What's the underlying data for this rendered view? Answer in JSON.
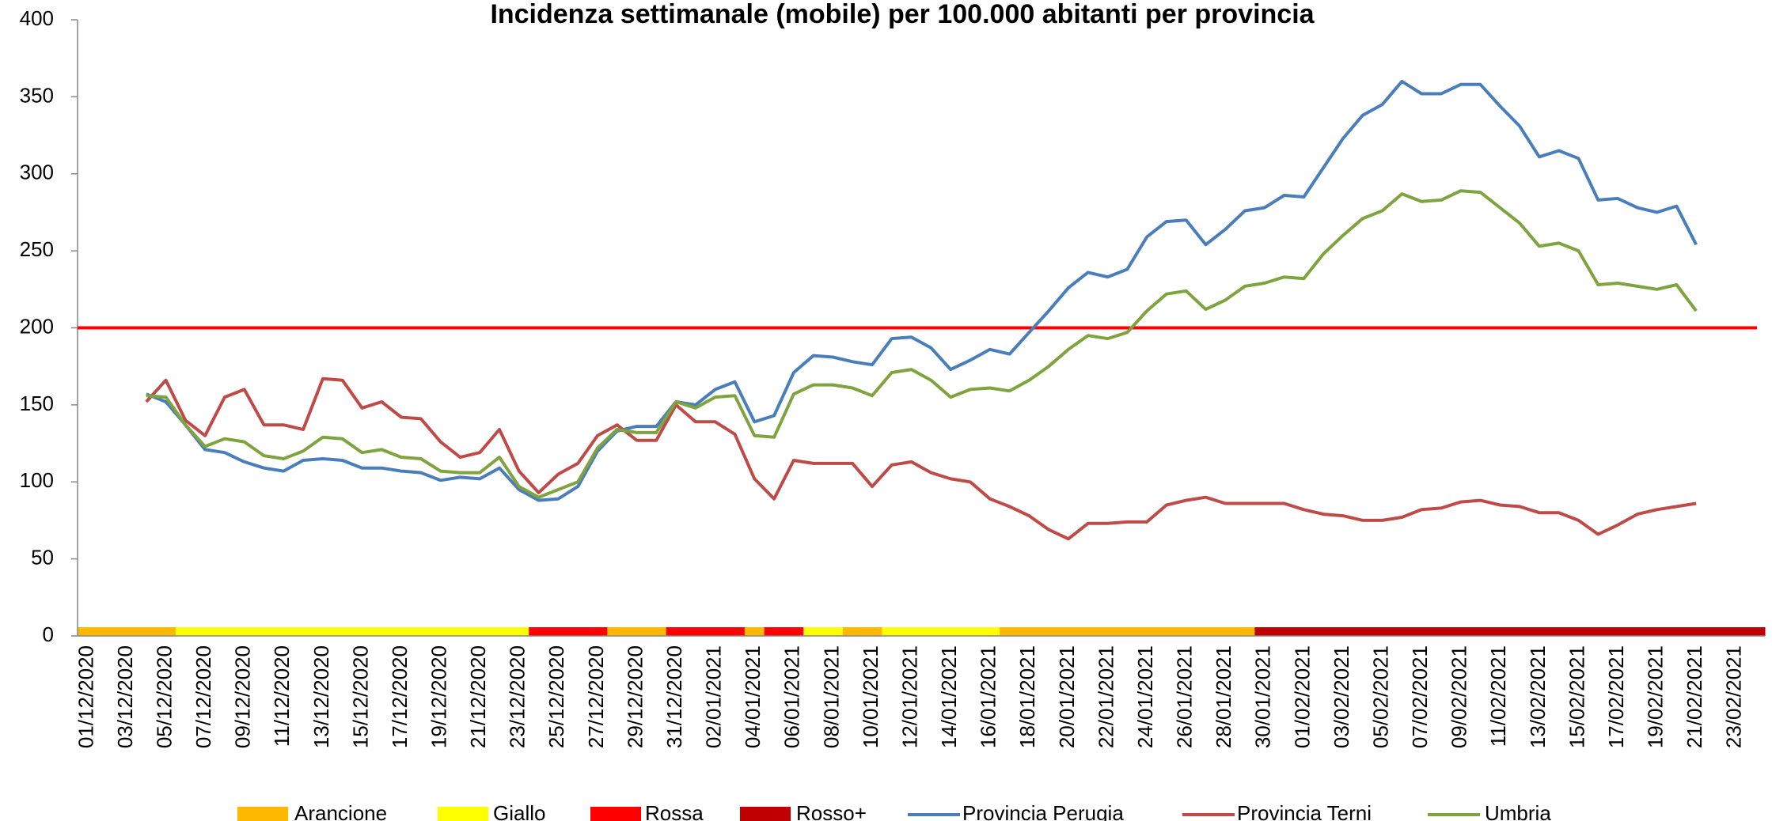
{
  "chart_data": {
    "type": "line",
    "title": "Incidenza settimanale (mobile) per 100.000 abitanti per provincia",
    "categories": [
      "01/12/2020",
      null,
      "03/12/2020",
      null,
      "05/12/2020",
      null,
      "07/12/2020",
      null,
      "09/12/2020",
      null,
      "11/12/2020",
      null,
      "13/12/2020",
      null,
      "15/12/2020",
      null,
      "17/12/2020",
      null,
      "19/12/2020",
      null,
      "21/12/2020",
      null,
      "23/12/2020",
      null,
      "25/12/2020",
      null,
      "27/12/2020",
      null,
      "29/12/2020",
      null,
      "31/12/2020",
      null,
      "02/01/2021",
      null,
      "04/01/2021",
      null,
      "06/01/2021",
      null,
      "08/01/2021",
      null,
      "10/01/2021",
      null,
      "12/01/2021",
      null,
      "14/01/2021",
      null,
      "16/01/2021",
      null,
      "18/01/2021",
      null,
      "20/01/2021",
      null,
      "22/01/2021",
      null,
      "24/01/2021",
      null,
      "26/01/2021",
      null,
      "28/01/2021",
      null,
      "30/01/2021",
      null,
      "01/02/2021",
      null,
      "03/02/2021",
      null,
      "05/02/2021",
      null,
      "07/02/2021",
      null,
      "09/02/2021",
      null,
      "11/02/2021",
      null,
      "13/02/2021",
      null,
      "15/02/2021",
      null,
      "17/02/2021",
      null,
      "19/02/2021",
      null,
      "21/02/2021",
      null,
      "23/02/2021",
      null
    ],
    "zones": [
      {
        "name": "Arancione",
        "color": "#ffb800"
      },
      {
        "name": "Giallo",
        "color": "#ffff00"
      },
      {
        "name": "Rossa",
        "color": "#ff0000"
      },
      {
        "name": "Rosso+",
        "color": "#c00000"
      }
    ],
    "zone_by_day": [
      "Arancione",
      "Arancione",
      "Arancione",
      "Arancione",
      "Arancione",
      "Giallo",
      "Giallo",
      "Giallo",
      "Giallo",
      "Giallo",
      "Giallo",
      "Giallo",
      "Giallo",
      "Giallo",
      "Giallo",
      "Giallo",
      "Giallo",
      "Giallo",
      "Giallo",
      "Giallo",
      "Giallo",
      "Giallo",
      "Giallo",
      "Rossa",
      "Rossa",
      "Rossa",
      "Rossa",
      "Arancione",
      "Arancione",
      "Arancione",
      "Rossa",
      "Rossa",
      "Rossa",
      "Rossa",
      "Arancione",
      "Rossa",
      "Rossa",
      "Giallo",
      "Giallo",
      "Arancione",
      "Arancione",
      "Giallo",
      "Giallo",
      "Giallo",
      "Giallo",
      "Giallo",
      "Giallo",
      "Arancione",
      "Arancione",
      "Arancione",
      "Arancione",
      "Arancione",
      "Arancione",
      "Arancione",
      "Arancione",
      "Arancione",
      "Arancione",
      "Arancione",
      "Arancione",
      "Arancione",
      "Rosso+",
      "Rosso+",
      "Rosso+",
      "Rosso+",
      "Rosso+",
      "Rosso+",
      "Rosso+",
      "Rosso+",
      "Rosso+",
      "Rosso+",
      "Rosso+",
      "Rosso+",
      "Rosso+",
      "Rosso+",
      "Rosso+",
      "Rosso+",
      "Rosso+",
      "Rosso+",
      "Rosso+",
      "Rosso+",
      "Rosso+",
      "Rosso+",
      "Rosso+",
      "Rosso+",
      "Rosso+",
      "Rosso+"
    ],
    "series": [
      {
        "name": "Provincia Perugia",
        "color": "#4a7ebb",
        "values": [
          null,
          null,
          null,
          157,
          152,
          137,
          121,
          119,
          113,
          109,
          107,
          114,
          115,
          114,
          109,
          109,
          107,
          106,
          101,
          103,
          102,
          109,
          95,
          88,
          89,
          97,
          120,
          133,
          136,
          136,
          152,
          150,
          160,
          165,
          139,
          143,
          171,
          182,
          181,
          178,
          176,
          193,
          194,
          187,
          173,
          179,
          186,
          183,
          197,
          211,
          226,
          236,
          233,
          238,
          259,
          269,
          270,
          254,
          264,
          276,
          278,
          286,
          285,
          304,
          323,
          338,
          345,
          360,
          352,
          352,
          358,
          358,
          344,
          331,
          311,
          315,
          310,
          283,
          284,
          278,
          275,
          279,
          254,
          null,
          null,
          null
        ]
      },
      {
        "name": "Provincia Terni",
        "color": "#be4b48",
        "values": [
          null,
          null,
          null,
          152,
          166,
          140,
          130,
          155,
          160,
          137,
          137,
          134,
          167,
          166,
          148,
          152,
          142,
          141,
          126,
          116,
          119,
          134,
          107,
          93,
          105,
          112,
          130,
          137,
          127,
          127,
          150,
          139,
          139,
          131,
          102,
          89,
          114,
          112,
          112,
          112,
          97,
          111,
          113,
          106,
          102,
          100,
          89,
          84,
          78,
          69,
          63,
          73,
          73,
          74,
          74,
          85,
          88,
          90,
          86,
          86,
          86,
          86,
          82,
          79,
          78,
          75,
          75,
          77,
          82,
          83,
          87,
          88,
          85,
          84,
          80,
          80,
          75,
          66,
          72,
          79,
          82,
          84,
          86,
          null,
          null,
          null
        ]
      },
      {
        "name": "Umbria",
        "color": "#7fa33e",
        "values": [
          null,
          null,
          null,
          156,
          155,
          137,
          123,
          128,
          126,
          117,
          115,
          120,
          129,
          128,
          119,
          121,
          116,
          115,
          107,
          106,
          106,
          116,
          97,
          90,
          95,
          100,
          122,
          134,
          132,
          132,
          152,
          148,
          155,
          156,
          130,
          129,
          157,
          163,
          163,
          161,
          156,
          171,
          173,
          166,
          155,
          160,
          161,
          159,
          166,
          175,
          186,
          195,
          193,
          197,
          211,
          222,
          224,
          212,
          218,
          227,
          229,
          233,
          232,
          248,
          260,
          271,
          276,
          287,
          282,
          283,
          289,
          288,
          278,
          268,
          253,
          255,
          250,
          228,
          229,
          227,
          225,
          228,
          211,
          null,
          null,
          null
        ]
      }
    ],
    "threshold": {
      "value": 200,
      "color": "#ff0000"
    },
    "ylim": [
      0,
      400
    ],
    "yticks": [
      0,
      50,
      100,
      150,
      200,
      250,
      300,
      350,
      400
    ]
  }
}
